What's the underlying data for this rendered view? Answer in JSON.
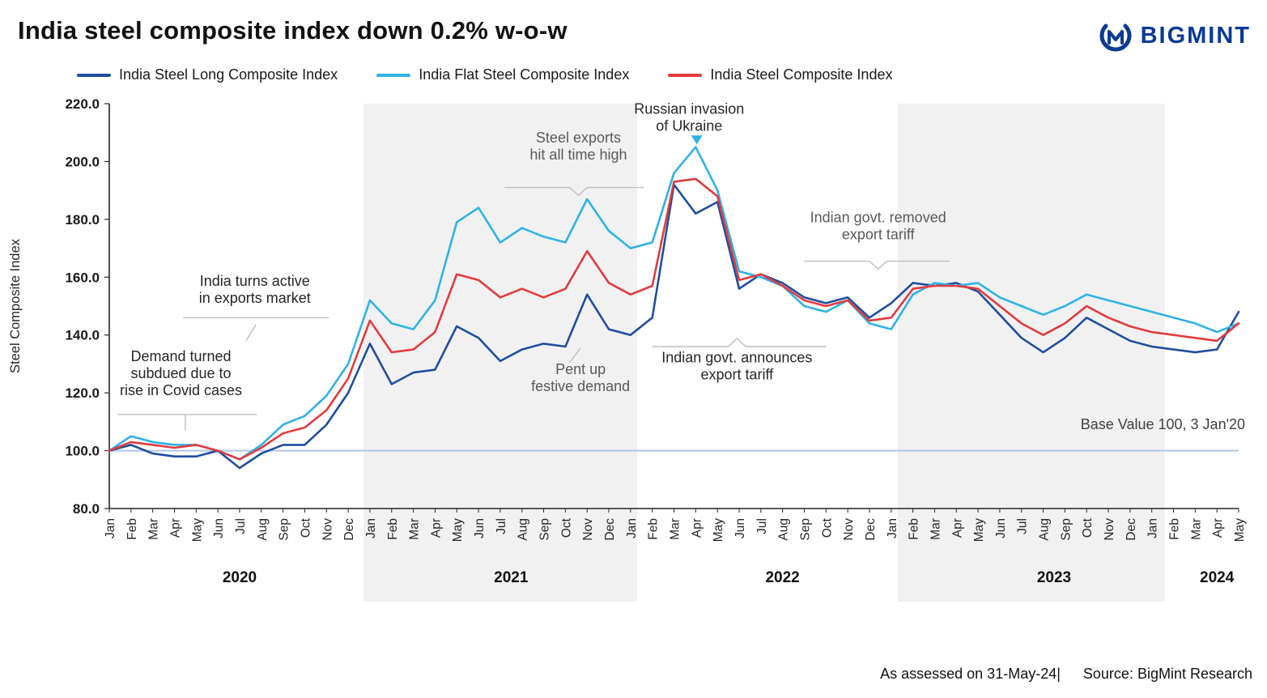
{
  "header": {
    "title": "India steel composite index down 0.2% w-o-w",
    "brand": "BIGMINT"
  },
  "footer": {
    "assessed": "As assessed on 31-May-24|",
    "source": "Source: BigMint Research"
  },
  "chart_data": {
    "type": "line",
    "title": "India steel composite index down 0.2% w-o-w",
    "ylabel": "Steel Composite Index",
    "ylim": [
      80,
      220
    ],
    "ytick_step": 20,
    "legend_position": "top",
    "grid": false,
    "style": {
      "band_color": "#f1f1f2",
      "base_line_color": "#b4c7e7",
      "axis_color": "#262626",
      "connector_color": "#bfbfbf"
    },
    "base_line": {
      "value": 100,
      "label": "Base Value 100, 3 Jan'20"
    },
    "x_labels": [
      "Jan",
      "Feb",
      "Mar",
      "Apr",
      "May",
      "Jun",
      "Jul",
      "Aug",
      "Sep",
      "Oct",
      "Nov",
      "Dec",
      "Jan",
      "Feb",
      "Mar",
      "Apr",
      "May",
      "Jun",
      "Jul",
      "Aug",
      "Sep",
      "Oct",
      "Nov",
      "Dec",
      "Jan",
      "Feb",
      "Mar",
      "Apr",
      "May",
      "Jun",
      "Jul",
      "Aug",
      "Sep",
      "Oct",
      "Nov",
      "Dec",
      "Jan",
      "Feb",
      "Mar",
      "Apr",
      "May",
      "Jun",
      "Jul",
      "Aug",
      "Sep",
      "Oct",
      "Nov",
      "Dec",
      "Jan",
      "Feb",
      "Mar",
      "Apr",
      "May"
    ],
    "years": [
      {
        "label": "2020",
        "center": 6,
        "band": null
      },
      {
        "label": "2021",
        "center": 18.5,
        "band": [
          11.7,
          24.3
        ]
      },
      {
        "label": "2022",
        "center": 31,
        "band": null
      },
      {
        "label": "2023",
        "center": 43.5,
        "band": [
          36.3,
          48.6
        ]
      },
      {
        "label": "2024",
        "center": 51,
        "band": null
      }
    ],
    "series": [
      {
        "name": "India Steel Long Composite Index",
        "color": "#1F4E9E",
        "values": [
          100,
          102,
          99,
          98,
          98,
          100,
          94,
          99,
          102,
          102,
          109,
          120,
          137,
          123,
          127,
          128,
          143,
          139,
          131,
          135,
          137,
          136,
          154,
          142,
          140,
          146,
          192,
          182,
          186,
          156,
          161,
          158,
          153,
          151,
          153,
          146,
          151,
          158,
          157,
          158,
          155,
          147,
          139,
          134,
          139,
          146,
          142,
          138,
          136,
          135,
          134,
          135,
          148
        ]
      },
      {
        "name": "India Flat Steel Composite Index",
        "color": "#2EB2E6",
        "values": [
          100,
          105,
          103,
          102,
          102,
          100,
          97,
          102,
          109,
          112,
          119,
          130,
          152,
          144,
          142,
          152,
          179,
          184,
          172,
          177,
          174,
          172,
          187,
          176,
          170,
          172,
          196,
          205,
          190,
          162,
          160,
          157,
          150,
          148,
          152,
          144,
          142,
          154,
          158,
          157,
          158,
          153,
          150,
          147,
          150,
          154,
          152,
          150,
          148,
          146,
          144,
          141,
          144
        ]
      },
      {
        "name": "India Steel Composite Index",
        "color": "#E23B3E",
        "values": [
          100,
          103,
          102,
          101,
          102,
          100,
          97,
          101,
          106,
          108,
          114,
          125,
          145,
          134,
          135,
          141,
          161,
          159,
          153,
          156,
          153,
          156,
          169,
          158,
          154,
          157,
          193,
          194,
          188,
          159,
          161,
          157,
          152,
          150,
          152,
          145,
          146,
          156,
          157,
          157,
          156,
          150,
          144,
          140,
          144,
          150,
          146,
          143,
          141,
          140,
          139,
          138,
          144
        ]
      }
    ],
    "annotations": [
      {
        "id": "covid-demand",
        "lines": [
          "Demand turned",
          "subdued due to",
          "rise in Covid cases"
        ],
        "x": 3.3,
        "y": 131,
        "color": "#262626",
        "anchor": "middle"
      },
      {
        "id": "exports-active",
        "lines": [
          "India turns active",
          "in exports market"
        ],
        "x": 6.7,
        "y": 157,
        "color": "#262626",
        "anchor": "middle"
      },
      {
        "id": "exports-high",
        "lines": [
          "Steel exports",
          "hit all time high"
        ],
        "x": 21.6,
        "y": 206.5,
        "color": "#595959",
        "anchor": "middle"
      },
      {
        "id": "russia-invasion",
        "lines": [
          "Russian invasion",
          "of Ukraine"
        ],
        "x": 26.7,
        "y": 216.5,
        "color": "#262626",
        "anchor": "middle"
      },
      {
        "id": "pent-up",
        "lines": [
          "Pent up",
          "festive demand"
        ],
        "x": 21.7,
        "y": 126.5,
        "color": "#595959",
        "anchor": "middle"
      },
      {
        "id": "tariff-announce",
        "lines": [
          "Indian govt. announces",
          "export tariff"
        ],
        "x": 28.9,
        "y": 130.5,
        "color": "#262626",
        "anchor": "middle"
      },
      {
        "id": "tariff-removed",
        "lines": [
          "Indian govt. removed",
          "export tariff"
        ],
        "x": 35.4,
        "y": 179,
        "color": "#595959",
        "anchor": "middle"
      },
      {
        "id": "base-value",
        "lines": [
          "Base Value 100, 3 Jan'20"
        ],
        "x": 52.3,
        "y": 107.5,
        "color": "#404040",
        "anchor": "end"
      }
    ],
    "connectors": [
      {
        "points": [
          [
            0.4,
            112.5
          ],
          [
            6.8,
            112.5
          ]
        ]
      },
      {
        "points": [
          [
            3.5,
            112.5
          ],
          [
            3.5,
            107
          ]
        ]
      },
      {
        "points": [
          [
            3.4,
            146
          ],
          [
            10.1,
            146
          ]
        ]
      },
      {
        "points": [
          [
            6.75,
            143.5
          ],
          [
            6.3,
            138
          ]
        ]
      },
      {
        "points": [
          [
            18.2,
            191
          ],
          [
            21.2,
            191
          ],
          [
            21.6,
            188.3
          ],
          [
            22.0,
            191
          ],
          [
            24.6,
            191
          ]
        ]
      },
      {
        "points": [
          [
            21.2,
            130.5
          ],
          [
            21.7,
            135.5
          ]
        ]
      },
      {
        "points": [
          [
            25.0,
            136
          ],
          [
            28.5,
            136
          ],
          [
            28.9,
            138.8
          ],
          [
            29.3,
            136
          ],
          [
            33.0,
            136
          ]
        ]
      },
      {
        "points": [
          [
            32.0,
            165.5
          ],
          [
            35.0,
            165.5
          ],
          [
            35.4,
            162.8
          ],
          [
            35.8,
            165.5
          ],
          [
            38.7,
            165.5
          ]
        ]
      }
    ],
    "markers": [
      {
        "type": "triangle-down",
        "x": 27.05,
        "y": 209,
        "color": "#2EB2E6"
      }
    ]
  }
}
